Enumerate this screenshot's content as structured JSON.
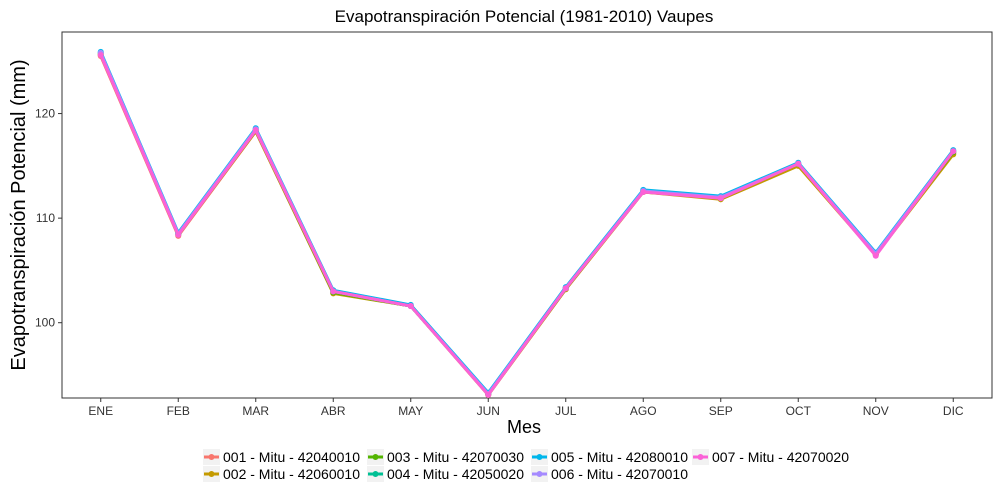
{
  "chart_data": {
    "type": "line",
    "title": "Evapotranspiración Potencial (1981-2010)  Vaupes",
    "xlabel": "Mes",
    "ylabel": "Evapotranspiración Potencial  (mm)",
    "categories": [
      "ENE",
      "FEB",
      "MAR",
      "ABR",
      "MAY",
      "JUN",
      "JUL",
      "AGO",
      "SEP",
      "OCT",
      "NOV",
      "DIC"
    ],
    "ylim": [
      92.8,
      127.8
    ],
    "yticks": [
      100,
      110,
      120
    ],
    "grid": false,
    "legend_position": "bottom",
    "series": [
      {
        "name": "001 - Mitu - 42040010",
        "color": "#F8766D",
        "values": [
          125.5,
          108.3,
          118.3,
          102.9,
          101.6,
          93.1,
          103.2,
          112.5,
          111.9,
          115.1,
          106.5,
          116.2
        ]
      },
      {
        "name": "002 - Mitu - 42060010",
        "color": "#C49A00",
        "values": [
          125.6,
          108.4,
          118.3,
          102.8,
          101.6,
          93.1,
          103.2,
          112.5,
          111.8,
          115.0,
          106.5,
          116.1
        ]
      },
      {
        "name": "003 - Mitu - 42070030",
        "color": "#53B400",
        "values": [
          125.7,
          108.5,
          118.4,
          102.9,
          101.6,
          93.2,
          103.3,
          112.6,
          111.9,
          115.2,
          106.6,
          116.3
        ]
      },
      {
        "name": "004 - Mitu - 42050020",
        "color": "#00C094",
        "values": [
          125.8,
          108.5,
          118.5,
          103.0,
          101.6,
          93.2,
          103.3,
          112.6,
          112.0,
          115.2,
          106.6,
          116.4
        ]
      },
      {
        "name": "005 - Mitu - 42080010",
        "color": "#00B6EB",
        "values": [
          125.9,
          108.6,
          118.6,
          103.1,
          101.7,
          93.3,
          103.4,
          112.7,
          112.1,
          115.3,
          106.7,
          116.5
        ]
      },
      {
        "name": "006 - Mitu - 42070010",
        "color": "#A58AFF",
        "values": [
          125.8,
          108.5,
          118.5,
          103.0,
          101.6,
          93.2,
          103.3,
          112.6,
          112.0,
          115.2,
          106.6,
          116.4
        ]
      },
      {
        "name": "007 - Mitu - 42070020",
        "color": "#FB61D7",
        "values": [
          125.6,
          108.4,
          118.4,
          103.0,
          101.6,
          93.1,
          103.3,
          112.5,
          111.9,
          115.2,
          106.4,
          116.4
        ]
      }
    ]
  }
}
